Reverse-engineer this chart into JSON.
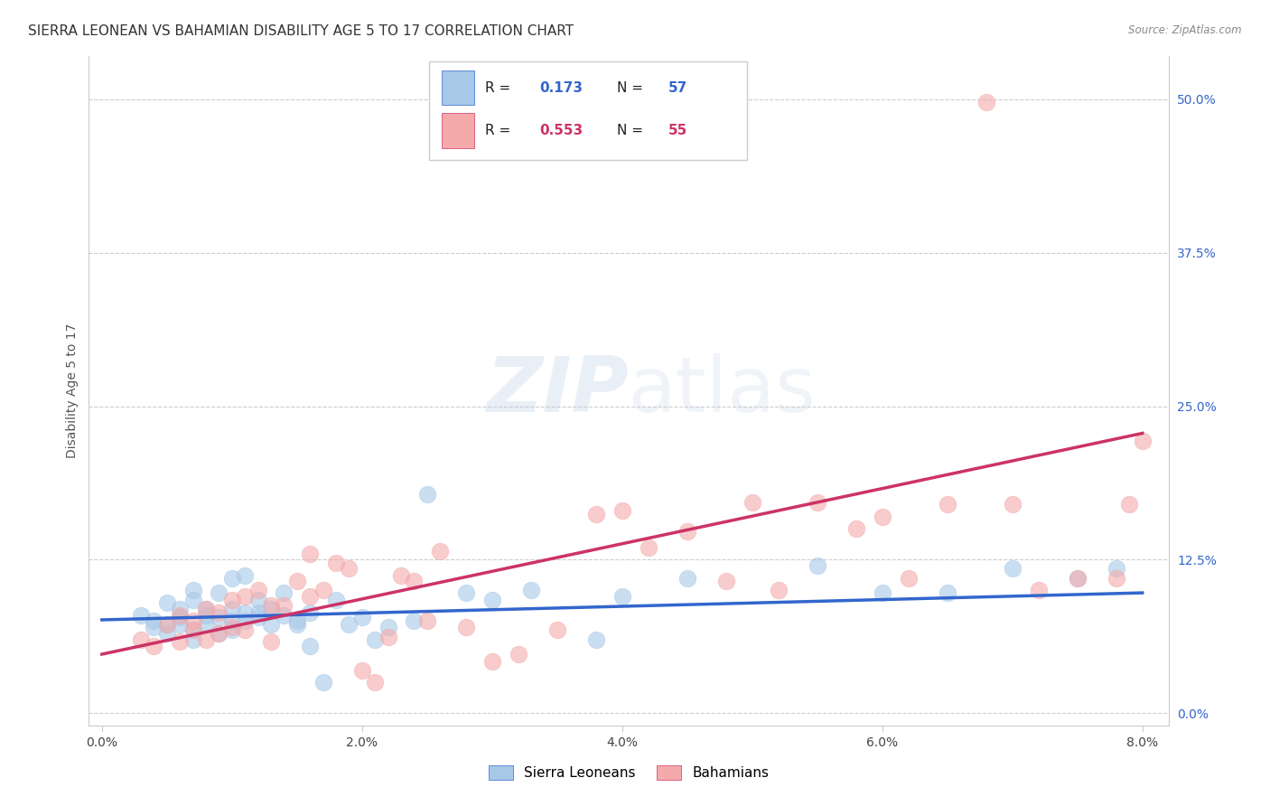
{
  "title": "SIERRA LEONEAN VS BAHAMIAN DISABILITY AGE 5 TO 17 CORRELATION CHART",
  "source": "Source: ZipAtlas.com",
  "ylabel": "Disability Age 5 to 17",
  "xlabel_ticks": [
    "0.0%",
    "2.0%",
    "4.0%",
    "6.0%",
    "8.0%"
  ],
  "xlabel_vals": [
    0.0,
    0.02,
    0.04,
    0.06,
    0.08
  ],
  "ylabel_ticks": [
    "0.0%",
    "12.5%",
    "25.0%",
    "37.5%",
    "50.0%"
  ],
  "ylabel_vals": [
    0.0,
    0.125,
    0.25,
    0.375,
    0.5
  ],
  "xlim": [
    -0.001,
    0.082
  ],
  "ylim": [
    -0.01,
    0.535
  ],
  "blue_color": "#A8C8E8",
  "pink_color": "#F4AAAA",
  "blue_line_color": "#3366CC",
  "pink_line_color": "#CC3366",
  "watermark_zip": "ZIP",
  "watermark_atlas": "atlas",
  "blue_scatter_x": [
    0.003,
    0.004,
    0.004,
    0.005,
    0.005,
    0.005,
    0.006,
    0.006,
    0.006,
    0.007,
    0.007,
    0.007,
    0.007,
    0.008,
    0.008,
    0.008,
    0.009,
    0.009,
    0.009,
    0.01,
    0.01,
    0.01,
    0.01,
    0.011,
    0.011,
    0.011,
    0.012,
    0.012,
    0.012,
    0.013,
    0.013,
    0.014,
    0.014,
    0.015,
    0.015,
    0.016,
    0.016,
    0.017,
    0.018,
    0.019,
    0.02,
    0.021,
    0.022,
    0.024,
    0.025,
    0.028,
    0.03,
    0.033,
    0.038,
    0.04,
    0.045,
    0.055,
    0.06,
    0.065,
    0.07,
    0.075,
    0.078
  ],
  "blue_scatter_y": [
    0.08,
    0.075,
    0.07,
    0.09,
    0.072,
    0.065,
    0.085,
    0.078,
    0.072,
    0.092,
    0.1,
    0.068,
    0.06,
    0.085,
    0.08,
    0.072,
    0.098,
    0.078,
    0.065,
    0.11,
    0.085,
    0.075,
    0.068,
    0.112,
    0.082,
    0.075,
    0.082,
    0.092,
    0.078,
    0.085,
    0.072,
    0.08,
    0.098,
    0.075,
    0.072,
    0.082,
    0.055,
    0.025,
    0.092,
    0.072,
    0.078,
    0.06,
    0.07,
    0.075,
    0.178,
    0.098,
    0.092,
    0.1,
    0.06,
    0.095,
    0.11,
    0.12,
    0.098,
    0.098,
    0.118,
    0.11,
    0.118
  ],
  "pink_scatter_x": [
    0.003,
    0.004,
    0.005,
    0.006,
    0.006,
    0.007,
    0.007,
    0.008,
    0.008,
    0.009,
    0.009,
    0.01,
    0.01,
    0.011,
    0.011,
    0.012,
    0.013,
    0.013,
    0.014,
    0.015,
    0.016,
    0.016,
    0.017,
    0.018,
    0.019,
    0.02,
    0.021,
    0.022,
    0.023,
    0.024,
    0.025,
    0.026,
    0.028,
    0.03,
    0.032,
    0.035,
    0.038,
    0.04,
    0.042,
    0.045,
    0.048,
    0.05,
    0.052,
    0.055,
    0.058,
    0.06,
    0.062,
    0.065,
    0.068,
    0.07,
    0.072,
    0.075,
    0.078,
    0.079,
    0.08
  ],
  "pink_scatter_y": [
    0.06,
    0.055,
    0.072,
    0.08,
    0.058,
    0.075,
    0.068,
    0.085,
    0.06,
    0.082,
    0.065,
    0.092,
    0.07,
    0.095,
    0.068,
    0.1,
    0.088,
    0.058,
    0.088,
    0.108,
    0.095,
    0.13,
    0.1,
    0.122,
    0.118,
    0.035,
    0.025,
    0.062,
    0.112,
    0.108,
    0.075,
    0.132,
    0.07,
    0.042,
    0.048,
    0.068,
    0.162,
    0.165,
    0.135,
    0.148,
    0.108,
    0.172,
    0.1,
    0.172,
    0.15,
    0.16,
    0.11,
    0.17,
    0.498,
    0.17,
    0.1,
    0.11,
    0.11,
    0.17,
    0.222
  ],
  "blue_trend_x": [
    0.0,
    0.08
  ],
  "blue_trend_y": [
    0.076,
    0.098
  ],
  "pink_trend_x": [
    0.0,
    0.08
  ],
  "pink_trend_y": [
    0.048,
    0.228
  ],
  "background_color": "#ffffff",
  "grid_color": "#cccccc",
  "title_fontsize": 11,
  "label_fontsize": 10,
  "tick_fontsize": 10,
  "legend_label_blue": "Sierra Leoneans",
  "legend_label_pink": "Bahamians"
}
